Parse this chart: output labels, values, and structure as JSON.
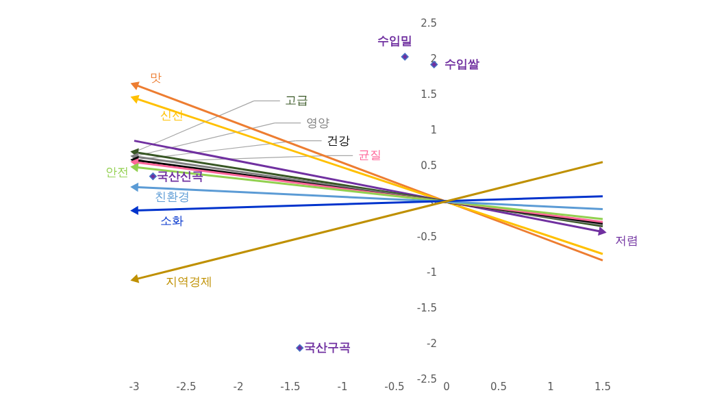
{
  "chart_data": {
    "type": "line",
    "xlim": [
      -3,
      1.5
    ],
    "ylim": [
      -2.5,
      2.5
    ],
    "xticks": [
      -3,
      -2.5,
      -2,
      -1.5,
      -1,
      -0.5,
      0,
      0.5,
      1,
      1.5
    ],
    "yticks": [
      -2.5,
      -2,
      -1.5,
      -1,
      -0.5,
      0,
      0.5,
      1,
      1.5,
      2,
      2.5
    ],
    "grid": false,
    "legend": false,
    "line_style": "solid",
    "series": [
      {
        "name": "맛",
        "color": "#ed7d31",
        "x": [
          1.5,
          -3
        ],
        "values": [
          -0.83,
          1.64
        ]
      },
      {
        "name": "신선",
        "color": "#ffc000",
        "x": [
          1.5,
          -3
        ],
        "values": [
          -0.74,
          1.45
        ]
      },
      {
        "name": "저렴",
        "color": "#7030a0",
        "x": [
          -3,
          1.5
        ],
        "values": [
          0.85,
          -0.43
        ]
      },
      {
        "name": "고급",
        "color": "#375623",
        "x": [
          1.5,
          -3
        ],
        "values": [
          -0.35,
          0.69
        ]
      },
      {
        "name": "영양",
        "color": "#7f7f7f",
        "x": [
          1.5,
          -3
        ],
        "values": [
          -0.33,
          0.63
        ]
      },
      {
        "name": "건강",
        "color": "#000000",
        "x": [
          1.5,
          -3
        ],
        "values": [
          -0.31,
          0.58
        ]
      },
      {
        "name": "균질",
        "color": "#ff6699",
        "x": [
          1.5,
          -3
        ],
        "values": [
          -0.29,
          0.55
        ]
      },
      {
        "name": "안전",
        "color": "#92d050",
        "x": [
          1.5,
          -3
        ],
        "values": [
          -0.25,
          0.48
        ]
      },
      {
        "name": "친환경",
        "color": "#5b9bd5",
        "x": [
          1.5,
          -3
        ],
        "values": [
          -0.11,
          0.2
        ]
      },
      {
        "name": "소화",
        "color": "#0033cc",
        "x": [
          1.5,
          -3
        ],
        "values": [
          0.07,
          -0.13
        ]
      },
      {
        "name": "지역경제",
        "color": "#bf9000",
        "x": [
          1.5,
          -3
        ],
        "values": [
          0.55,
          -1.1
        ]
      },
      {
        "name": "수입밀",
        "type": "scatter",
        "marker": "diamond",
        "color": "#7030a0",
        "x": [
          -0.4
        ],
        "values": [
          2.03
        ]
      },
      {
        "name": "수입쌀",
        "type": "scatter",
        "marker": "diamond",
        "color": "#7030a0",
        "x": [
          -0.12
        ],
        "values": [
          1.92
        ]
      },
      {
        "name": "국산신곡",
        "type": "scatter",
        "marker": "diamond",
        "color": "#7030a0",
        "x": [
          -2.82
        ],
        "values": [
          0.35
        ]
      },
      {
        "name": "국산구곡",
        "type": "scatter",
        "marker": "diamond",
        "color": "#7030a0",
        "x": [
          -1.41
        ],
        "values": [
          -2.06
        ]
      }
    ]
  }
}
